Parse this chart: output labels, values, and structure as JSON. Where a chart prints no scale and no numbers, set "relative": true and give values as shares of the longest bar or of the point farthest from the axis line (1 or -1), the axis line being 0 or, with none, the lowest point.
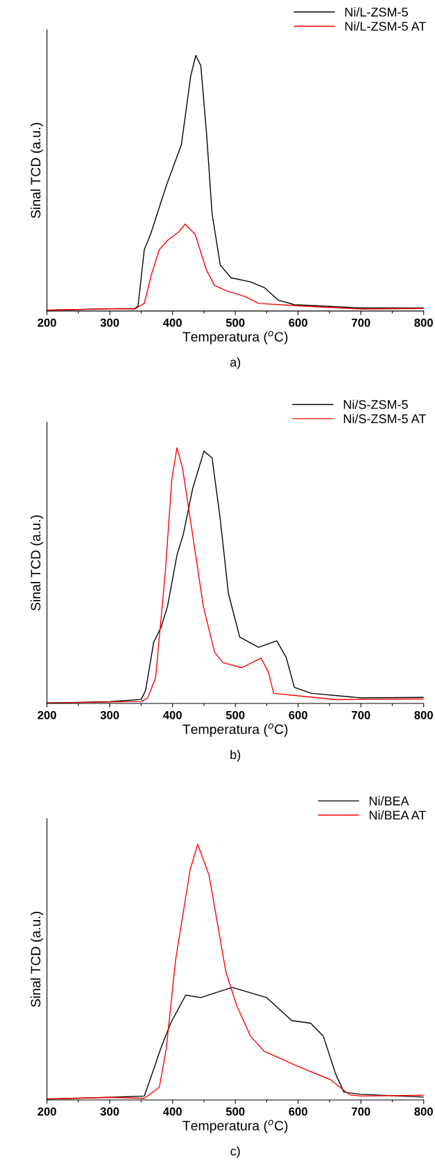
{
  "chart_data": [
    {
      "type": "line",
      "xlabel": "Temperatura ($^{o}$C)",
      "ylabel": "Sinal TCD (a.u.)",
      "annotations": [
        "a)"
      ],
      "relative": true,
      "legend": "top right",
      "tick_labels": "x",
      "xlim": [
        200,
        800
      ],
      "xticks": [
        200,
        {
          "value": 250,
          "label": null
        },
        300,
        {
          "value": 350,
          "label": null
        },
        400,
        {
          "value": 450,
          "label": null
        },
        500,
        {
          "value": 550,
          "label": null
        },
        600,
        {
          "value": 650,
          "label": null
        },
        700,
        {
          "value": 750,
          "label": null
        },
        800
      ],
      "series": [
        {
          "name": "Ni/L-ZSM-5",
          "color": "#000000",
          "x": [
            200,
            300,
            340,
            345,
            355,
            365,
            390,
            414,
            429,
            437,
            445,
            454,
            463,
            476,
            493,
            524,
            546,
            568,
            594,
            700,
            800
          ],
          "values": [
            0.003,
            0.009,
            0.01,
            0.02,
            0.24,
            0.3,
            0.49,
            0.65,
            0.92,
            1.0,
            0.96,
            0.7,
            0.38,
            0.18,
            0.13,
            0.114,
            0.092,
            0.043,
            0.025,
            0.012,
            0.012
          ]
        },
        {
          "name": "Ni/L-ZSM-5 AT",
          "color": "#ff0000",
          "x": [
            200,
            300,
            340,
            355,
            366,
            379,
            392,
            410,
            420,
            436,
            454,
            467,
            489,
            515,
            537,
            600,
            700,
            800
          ],
          "values": [
            0.003,
            0.009,
            0.008,
            0.03,
            0.14,
            0.24,
            0.276,
            0.31,
            0.34,
            0.3,
            0.16,
            0.1,
            0.076,
            0.057,
            0.03,
            0.02,
            0.008,
            0.01
          ]
        }
      ]
    },
    {
      "type": "line",
      "xlabel": "Temperatura ($^{o}$C)",
      "ylabel": "Sinal TCD (a.u.)",
      "annotations": [
        "b)"
      ],
      "relative": true,
      "legend": "top right",
      "tick_labels": "x",
      "xlim": [
        200,
        800
      ],
      "xticks": [
        200,
        {
          "value": 250,
          "label": null
        },
        300,
        {
          "value": 350,
          "label": null
        },
        400,
        {
          "value": 450,
          "label": null
        },
        500,
        {
          "value": 550,
          "label": null
        },
        600,
        {
          "value": 650,
          "label": null
        },
        700,
        {
          "value": 750,
          "label": null
        },
        800
      ],
      "series": [
        {
          "name": "Ni/S-ZSM-5",
          "color": "#000000",
          "x": [
            200,
            300,
            350,
            357,
            370,
            382,
            392,
            407,
            417,
            432,
            450,
            463,
            476,
            489,
            507,
            537,
            566,
            581,
            594,
            621,
            700,
            800
          ],
          "values": [
            0.002,
            0.007,
            0.016,
            0.05,
            0.24,
            0.3,
            0.38,
            0.58,
            0.66,
            0.84,
            0.987,
            0.96,
            0.72,
            0.43,
            0.26,
            0.22,
            0.245,
            0.18,
            0.063,
            0.04,
            0.022,
            0.024
          ]
        },
        {
          "name": "Ni/S-ZSM-5 AT",
          "color": "#ff0000",
          "x": [
            200,
            350,
            360,
            373,
            388,
            399,
            407,
            416,
            432,
            449,
            467,
            480,
            510,
            541,
            553,
            561,
            600,
            660,
            800
          ],
          "values": [
            0.002,
            0.008,
            0.02,
            0.1,
            0.5,
            0.88,
            1.0,
            0.92,
            0.66,
            0.38,
            0.2,
            0.16,
            0.14,
            0.178,
            0.12,
            0.04,
            0.03,
            0.015,
            0.018
          ]
        }
      ]
    },
    {
      "type": "line",
      "xlabel": "Temperatura ($^{o}$C)",
      "ylabel": "Sinal TCD (a.u.)",
      "annotations": [
        "c)"
      ],
      "relative": true,
      "legend": "top right",
      "tick_labels": "x",
      "xlim": [
        200,
        800
      ],
      "xticks": [
        200,
        {
          "value": 250,
          "label": null
        },
        300,
        {
          "value": 350,
          "label": null
        },
        400,
        {
          "value": 450,
          "label": null
        },
        500,
        {
          "value": 550,
          "label": null
        },
        600,
        {
          "value": 650,
          "label": null
        },
        700,
        {
          "value": 750,
          "label": null
        },
        800
      ],
      "series": [
        {
          "name": "Ni/BEA",
          "color": "#000000",
          "x": [
            200,
            300,
            355,
            370,
            381,
            397,
            421,
            445,
            495,
            550,
            590,
            620,
            640,
            660,
            673,
            700,
            800
          ],
          "values": [
            0.003,
            0.01,
            0.015,
            0.12,
            0.2,
            0.3,
            0.41,
            0.4,
            0.44,
            0.4,
            0.31,
            0.3,
            0.25,
            0.1,
            0.03,
            0.022,
            0.011
          ]
        },
        {
          "name": "Ni/BEA AT",
          "color": "#ff0000",
          "x": [
            200,
            300,
            355,
            379,
            390,
            405,
            428,
            440,
            458,
            485,
            502,
            524,
            546,
            601,
            651,
            682,
            700,
            800
          ],
          "values": [
            0.004,
            0.01,
            0.006,
            0.05,
            0.2,
            0.55,
            0.9,
            1.0,
            0.88,
            0.5,
            0.37,
            0.25,
            0.19,
            0.13,
            0.08,
            0.02,
            0.015,
            0.018
          ]
        }
      ]
    }
  ]
}
